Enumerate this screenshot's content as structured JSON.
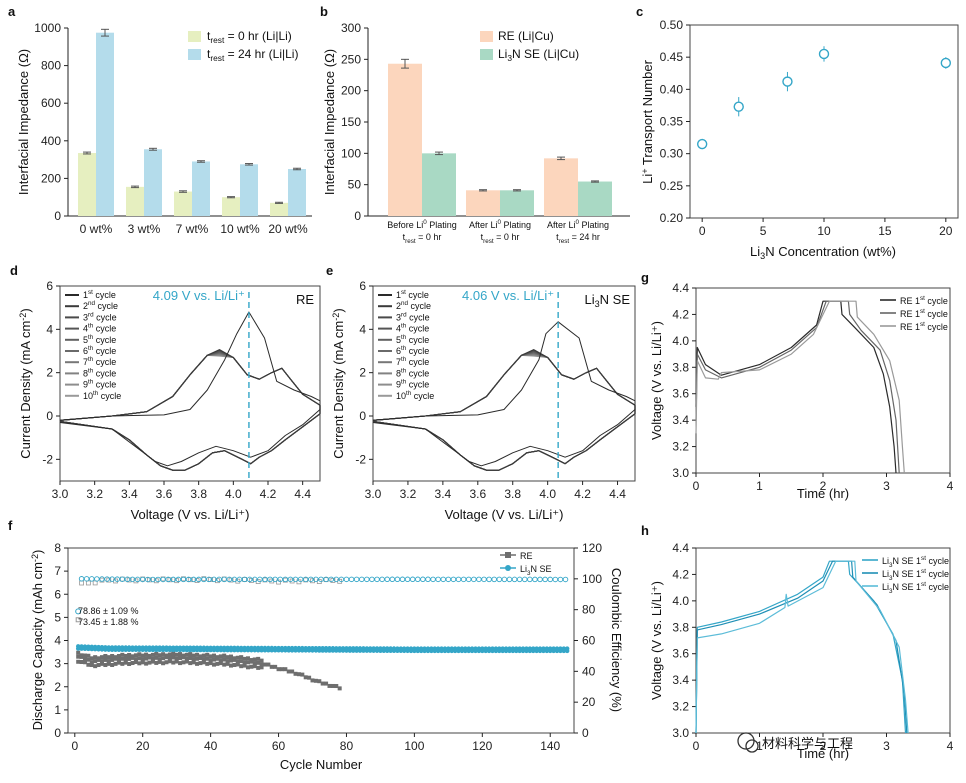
{
  "colors": {
    "yellow": "#e6efc0",
    "blue": "#b4dceb",
    "orange": "#fcd6bd",
    "green": "#a9d9c4",
    "teal": "#34a6c8",
    "grey": "#6e6e6e",
    "dark": "#2a2a2a"
  },
  "watermark": "材料科学与工程",
  "chart_data": [
    {
      "id": "a",
      "panel_label": "a",
      "type": "bar",
      "ylabel": "Interfacial Impedance (Ω)",
      "ylim": [
        0,
        1000
      ],
      "yticks": [
        "0",
        "200",
        "400",
        "600",
        "800",
        "1000"
      ],
      "categories": [
        "0 wt%",
        "3 wt%",
        "7 wt%",
        "10 wt%",
        "20 wt%"
      ],
      "series": [
        {
          "name": "t_rest = 0 hr (Li|Li)",
          "legend_main": "t",
          "legend_sub": "rest",
          "legend_rest": " = 0 hr (Li|Li)",
          "values": [
            335,
            155,
            130,
            100,
            70
          ],
          "errors": [
            5,
            4,
            4,
            3,
            3
          ]
        },
        {
          "name": "t_rest = 24 hr (Li|Li)",
          "legend_main": "t",
          "legend_sub": "rest",
          "legend_rest": " = 24 hr (Li|Li)",
          "values": [
            975,
            355,
            290,
            275,
            250
          ],
          "errors": [
            18,
            5,
            4,
            4,
            4
          ]
        }
      ]
    },
    {
      "id": "b",
      "panel_label": "b",
      "type": "bar",
      "ylabel": "Interfacial Impedance (Ω)",
      "ylim": [
        0,
        300
      ],
      "yticks": [
        "0",
        "50",
        "100",
        "150",
        "200",
        "250",
        "300"
      ],
      "categories": [
        {
          "l1": "Before Li",
          "l1sup": "0",
          "l1b": " Plating",
          "l2": "t",
          "l2sub": "rest",
          "l2b": " = 0 hr"
        },
        {
          "l1": "After Li",
          "l1sup": "0",
          "l1b": " Plating",
          "l2": "t",
          "l2sub": "rest",
          "l2b": " = 0 hr"
        },
        {
          "l1": "After Li",
          "l1sup": "0",
          "l1b": " Plating",
          "l2": "t",
          "l2sub": "rest",
          "l2b": " = 24 hr"
        }
      ],
      "series": [
        {
          "name": "RE (Li|Cu)",
          "legend_parts": [
            "RE (Li|Cu)"
          ],
          "values": [
            243,
            41,
            92
          ],
          "errors": [
            7,
            1,
            2
          ]
        },
        {
          "name": "Li3N SE (Li|Cu)",
          "legend_parts": [
            "Li",
            "3",
            "N SE (Li|Cu)"
          ],
          "values": [
            100,
            41,
            55
          ],
          "errors": [
            2,
            1,
            1
          ]
        }
      ]
    },
    {
      "id": "c",
      "panel_label": "c",
      "type": "scatter",
      "ylabel_parts": [
        "Li",
        "+",
        " Transport Number"
      ],
      "xlabel_parts": [
        "Li",
        "3",
        "N Concentration (wt%)"
      ],
      "xlim": [
        -1,
        21
      ],
      "ylim": [
        0.2,
        0.5
      ],
      "xticks": [
        "0",
        "5",
        "10",
        "15",
        "20"
      ],
      "yticks": [
        "0.20",
        "0.25",
        "0.30",
        "0.35",
        "0.40",
        "0.45",
        "0.50"
      ],
      "x": [
        0,
        3,
        7,
        10,
        20
      ],
      "y": [
        0.315,
        0.373,
        0.412,
        0.455,
        0.441
      ],
      "errors": [
        0.008,
        0.015,
        0.015,
        0.012,
        0.009
      ]
    },
    {
      "id": "d",
      "panel_label": "d",
      "type": "line",
      "title": "RE",
      "annotation": "4.09 V vs. Li/Li⁺",
      "xlabel": "Voltage (V vs. Li/Li⁺)",
      "ylabel_parts": [
        "Current Density (mA cm",
        "-2",
        ")"
      ],
      "xlim": [
        3.0,
        4.5
      ],
      "ylim": [
        -3,
        6
      ],
      "xticks": [
        "3.0",
        "3.2",
        "3.4",
        "3.6",
        "3.8",
        "4.0",
        "4.2",
        "4.4"
      ],
      "yticks": [
        "-2",
        "0",
        "2",
        "4",
        "6"
      ],
      "vline_x": 4.09,
      "peak_current": 4.8,
      "legend": [
        {
          "n": "1",
          "s": "st"
        },
        {
          "n": "2",
          "s": "nd"
        },
        {
          "n": "3",
          "s": "rd"
        },
        {
          "n": "4",
          "s": "th"
        },
        {
          "n": "5",
          "s": "th"
        },
        {
          "n": "6",
          "s": "th"
        },
        {
          "n": "7",
          "s": "th"
        },
        {
          "n": "8",
          "s": "th"
        },
        {
          "n": "9",
          "s": "th"
        },
        {
          "n": "10",
          "s": "th"
        }
      ],
      "cycle_word": " cycle"
    },
    {
      "id": "e",
      "panel_label": "e",
      "type": "line",
      "title_parts": [
        "Li",
        "3",
        "N SE"
      ],
      "annotation": "4.06 V vs. Li/Li⁺",
      "xlabel": "Voltage (V vs. Li/Li⁺)",
      "ylabel_parts": [
        "Current Density (mA cm",
        "-2",
        ")"
      ],
      "xlim": [
        3.0,
        4.5
      ],
      "ylim": [
        -3,
        6
      ],
      "xticks": [
        "3.0",
        "3.2",
        "3.4",
        "3.6",
        "3.8",
        "4.0",
        "4.2",
        "4.4"
      ],
      "yticks": [
        "-2",
        "0",
        "2",
        "4",
        "6"
      ],
      "vline_x": 4.06,
      "peak_current": 4.35,
      "legend": [
        {
          "n": "1",
          "s": "st"
        },
        {
          "n": "2",
          "s": "nd"
        },
        {
          "n": "3",
          "s": "rd"
        },
        {
          "n": "4",
          "s": "th"
        },
        {
          "n": "5",
          "s": "th"
        },
        {
          "n": "6",
          "s": "th"
        },
        {
          "n": "7",
          "s": "th"
        },
        {
          "n": "8",
          "s": "th"
        },
        {
          "n": "9",
          "s": "th"
        },
        {
          "n": "10",
          "s": "th"
        }
      ],
      "cycle_word": " cycle"
    },
    {
      "id": "f",
      "panel_label": "f",
      "type": "scatter",
      "xlabel": "Cycle Number",
      "ylabel_parts": [
        "Discharge Capacity (mAh cm",
        "-2",
        ")"
      ],
      "y2label": "Coulombic Efficiency (%)",
      "xlim": [
        -2,
        147
      ],
      "ylim": [
        0,
        8
      ],
      "y2lim": [
        0,
        120
      ],
      "xticks": [
        "0",
        "20",
        "40",
        "60",
        "80",
        "100",
        "120",
        "140"
      ],
      "yticks": [
        "0",
        "1",
        "2",
        "3",
        "4",
        "5",
        "6",
        "7",
        "8"
      ],
      "y2ticks": [
        "0",
        "20",
        "40",
        "60",
        "80",
        "100",
        "120"
      ],
      "series": [
        {
          "name": "RE",
          "legend_parts": [
            "RE"
          ],
          "cycles": 78,
          "initial_ce": 73.45,
          "initial_ce_label": "73.45 ± 1.88 %"
        },
        {
          "name": "Li3N SE",
          "legend_parts": [
            "Li",
            "3",
            "N SE"
          ],
          "cycles": 145,
          "initial_ce": 78.86,
          "initial_ce_label": "78.86 ± 1.09 %"
        }
      ],
      "re_capacity": [
        [
          1,
          3.3
        ],
        [
          5,
          3.1
        ],
        [
          15,
          3.2
        ],
        [
          30,
          3.25
        ],
        [
          45,
          3.15
        ],
        [
          55,
          3.0
        ],
        [
          65,
          2.6
        ],
        [
          72,
          2.2
        ],
        [
          78,
          1.95
        ]
      ],
      "se_capacity": [
        [
          1,
          3.7
        ],
        [
          10,
          3.65
        ],
        [
          50,
          3.63
        ],
        [
          100,
          3.6
        ],
        [
          145,
          3.6
        ]
      ],
      "re_ce": [
        [
          3,
          97
        ],
        [
          10,
          99.2
        ],
        [
          40,
          99.5
        ],
        [
          60,
          98.5
        ],
        [
          72,
          98.8
        ],
        [
          78,
          99
        ]
      ],
      "se_ce": [
        [
          3,
          100
        ],
        [
          20,
          99.6
        ],
        [
          100,
          99.7
        ],
        [
          145,
          99.6
        ]
      ]
    },
    {
      "id": "g",
      "panel_label": "g",
      "type": "line",
      "xlabel": "Time (hr)",
      "ylabel": "Voltage (V vs. Li/Li⁺)",
      "xlim": [
        0,
        4
      ],
      "ylim": [
        3.0,
        4.4
      ],
      "xticks": [
        "0",
        "1",
        "2",
        "3",
        "4"
      ],
      "yticks": [
        "3.0",
        "3.2",
        "3.4",
        "3.6",
        "3.8",
        "4.0",
        "4.2",
        "4.4"
      ],
      "legend": [
        {
          "a": "RE 1",
          "s": "st",
          "b": " cycle"
        },
        {
          "a": "RE 1",
          "s": "st",
          "b": " cycle"
        },
        {
          "a": "RE 1",
          "s": "st",
          "b": " cycle"
        }
      ]
    },
    {
      "id": "h",
      "panel_label": "h",
      "type": "line",
      "xlabel": "Time (hr)",
      "ylabel": "Voltage (V vs. Li/Li⁺)",
      "xlim": [
        0,
        4
      ],
      "ylim": [
        3.0,
        4.4
      ],
      "xticks": [
        "0",
        "1",
        "2",
        "3",
        "4"
      ],
      "yticks": [
        "3.0",
        "3.2",
        "3.4",
        "3.6",
        "3.8",
        "4.0",
        "4.2",
        "4.4"
      ],
      "legend": [
        {
          "a": "Li",
          "sub": "3",
          "a2": "N SE 1",
          "s": "st",
          "b": " cycle"
        },
        {
          "a": "Li",
          "sub": "3",
          "a2": "N SE 1",
          "s": "st",
          "b": " cycle"
        },
        {
          "a": "Li",
          "sub": "3",
          "a2": "N SE 1",
          "s": "st",
          "b": " cycle"
        }
      ]
    }
  ]
}
